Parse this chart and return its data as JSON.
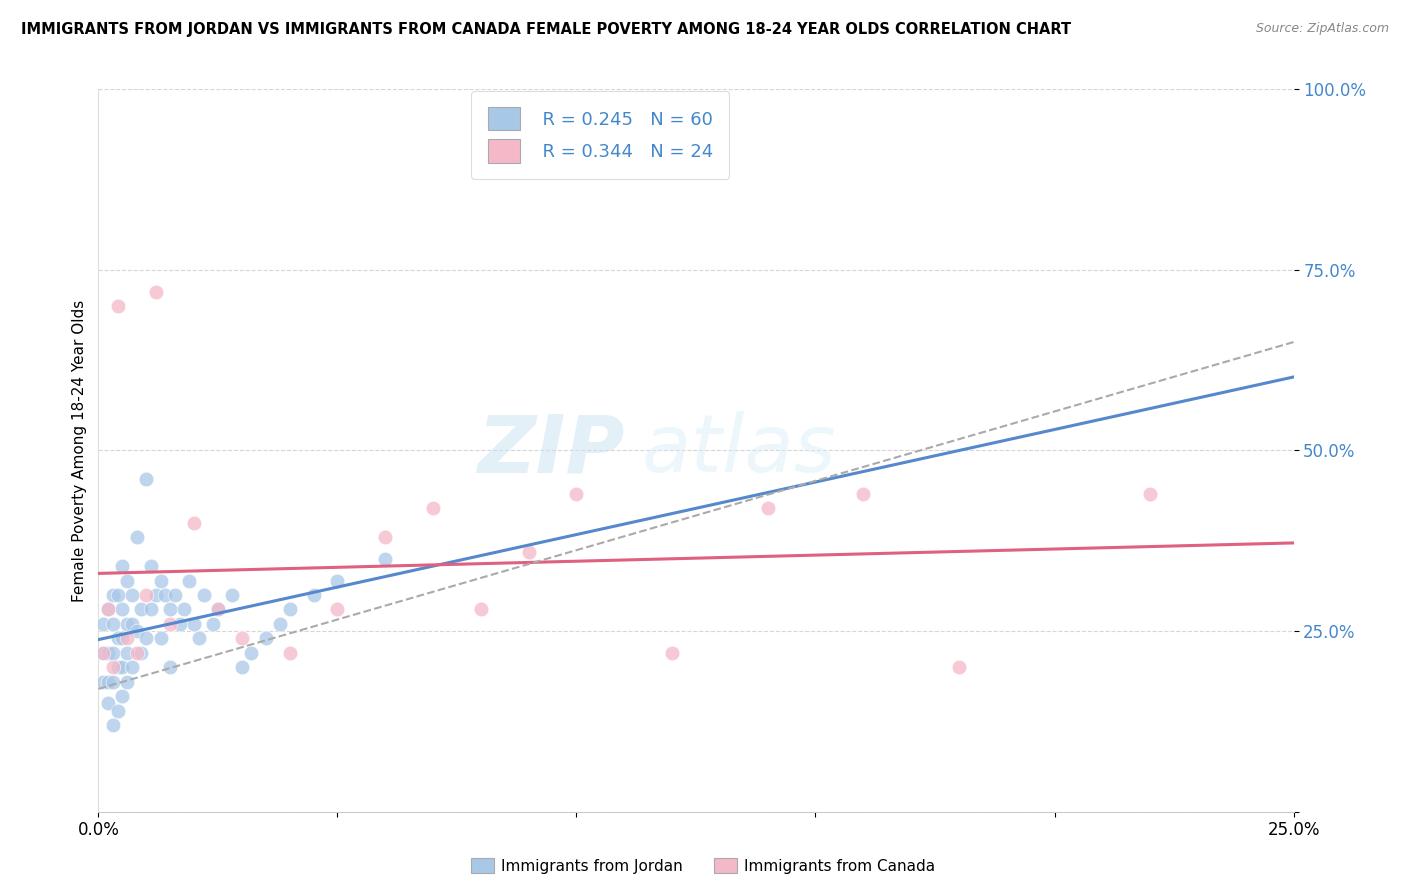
{
  "title": "IMMIGRANTS FROM JORDAN VS IMMIGRANTS FROM CANADA FEMALE POVERTY AMONG 18-24 YEAR OLDS CORRELATION CHART",
  "source": "Source: ZipAtlas.com",
  "ylabel": "Female Poverty Among 18-24 Year Olds",
  "legend_jordan": "Immigrants from Jordan",
  "legend_canada": "Immigrants from Canada",
  "R_jordan": "0.245",
  "N_jordan": "60",
  "R_canada": "0.344",
  "N_canada": "24",
  "color_jordan": "#a8c8e8",
  "color_canada": "#f5b8c8",
  "color_jordan_line": "#5588cc",
  "color_canada_line": "#e06080",
  "color_dashed": "#aaaaaa",
  "watermark_zip": "ZIP",
  "watermark_atlas": "atlas",
  "jordan_x": [
    0.001,
    0.001,
    0.001,
    0.002,
    0.002,
    0.002,
    0.002,
    0.003,
    0.003,
    0.003,
    0.003,
    0.003,
    0.004,
    0.004,
    0.004,
    0.004,
    0.005,
    0.005,
    0.005,
    0.005,
    0.005,
    0.006,
    0.006,
    0.006,
    0.006,
    0.007,
    0.007,
    0.007,
    0.008,
    0.008,
    0.009,
    0.009,
    0.01,
    0.01,
    0.011,
    0.011,
    0.012,
    0.013,
    0.013,
    0.014,
    0.015,
    0.015,
    0.016,
    0.017,
    0.018,
    0.019,
    0.02,
    0.021,
    0.022,
    0.024,
    0.025,
    0.028,
    0.03,
    0.032,
    0.035,
    0.038,
    0.04,
    0.045,
    0.05,
    0.06
  ],
  "jordan_y": [
    0.18,
    0.22,
    0.26,
    0.15,
    0.18,
    0.22,
    0.28,
    0.12,
    0.18,
    0.22,
    0.26,
    0.3,
    0.14,
    0.2,
    0.24,
    0.3,
    0.16,
    0.2,
    0.24,
    0.28,
    0.34,
    0.18,
    0.22,
    0.26,
    0.32,
    0.2,
    0.26,
    0.3,
    0.25,
    0.38,
    0.22,
    0.28,
    0.24,
    0.46,
    0.28,
    0.34,
    0.3,
    0.24,
    0.32,
    0.3,
    0.2,
    0.28,
    0.3,
    0.26,
    0.28,
    0.32,
    0.26,
    0.24,
    0.3,
    0.26,
    0.28,
    0.3,
    0.2,
    0.22,
    0.24,
    0.26,
    0.28,
    0.3,
    0.32,
    0.35
  ],
  "canada_x": [
    0.001,
    0.002,
    0.003,
    0.004,
    0.006,
    0.008,
    0.01,
    0.012,
    0.015,
    0.02,
    0.025,
    0.03,
    0.04,
    0.05,
    0.06,
    0.07,
    0.08,
    0.09,
    0.1,
    0.12,
    0.14,
    0.16,
    0.18,
    0.22
  ],
  "canada_y": [
    0.22,
    0.28,
    0.2,
    0.7,
    0.24,
    0.22,
    0.3,
    0.72,
    0.26,
    0.4,
    0.28,
    0.24,
    0.22,
    0.28,
    0.38,
    0.42,
    0.28,
    0.36,
    0.44,
    0.22,
    0.42,
    0.44,
    0.2,
    0.44
  ],
  "xmin": 0.0,
  "xmax": 0.25,
  "ymin": 0.0,
  "ymax": 1.0,
  "yticks": [
    0.0,
    0.25,
    0.5,
    0.75,
    1.0
  ],
  "ytick_labels": [
    "",
    "25.0%",
    "50.0%",
    "75.0%",
    "100.0%"
  ],
  "xtick_labels": [
    "0.0%",
    "25.0%"
  ]
}
